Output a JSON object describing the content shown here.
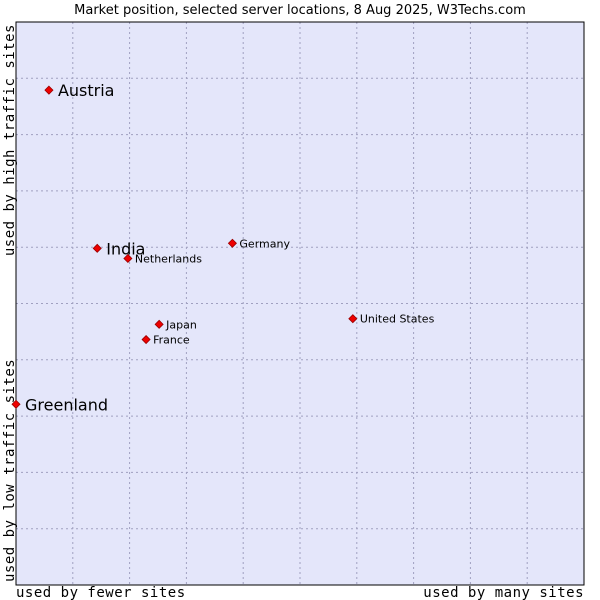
{
  "chart_data": {
    "type": "scatter",
    "title": "Market position, selected server locations, 8 Aug 2025, W3Techs.com",
    "xlabel_left": "used by fewer sites",
    "xlabel_right": "used by many sites",
    "ylabel_top": "used by high traffic sites",
    "ylabel_bottom": "used by low traffic sites",
    "xlim": [
      0,
      10
    ],
    "ylim": [
      0,
      10
    ],
    "grid": true,
    "colors": {
      "plot_bg": "#e4e6fa",
      "grid": "#a0a0c0",
      "marker": "#ee0000",
      "marker_edge": "#990000"
    },
    "points": [
      {
        "name": "Austria",
        "x": 0.58,
        "y": 8.79,
        "label_size": "large"
      },
      {
        "name": "India",
        "x": 1.43,
        "y": 5.98,
        "label_size": "large"
      },
      {
        "name": "Netherlands",
        "x": 1.97,
        "y": 5.8,
        "label_size": "small"
      },
      {
        "name": "Germany",
        "x": 3.81,
        "y": 6.07,
        "label_size": "small"
      },
      {
        "name": "United States",
        "x": 5.93,
        "y": 4.73,
        "label_size": "small"
      },
      {
        "name": "Japan",
        "x": 2.52,
        "y": 4.63,
        "label_size": "small"
      },
      {
        "name": "France",
        "x": 2.29,
        "y": 4.36,
        "label_size": "small"
      },
      {
        "name": "Greenland",
        "x": 0.0,
        "y": 3.21,
        "label_size": "large"
      }
    ]
  }
}
